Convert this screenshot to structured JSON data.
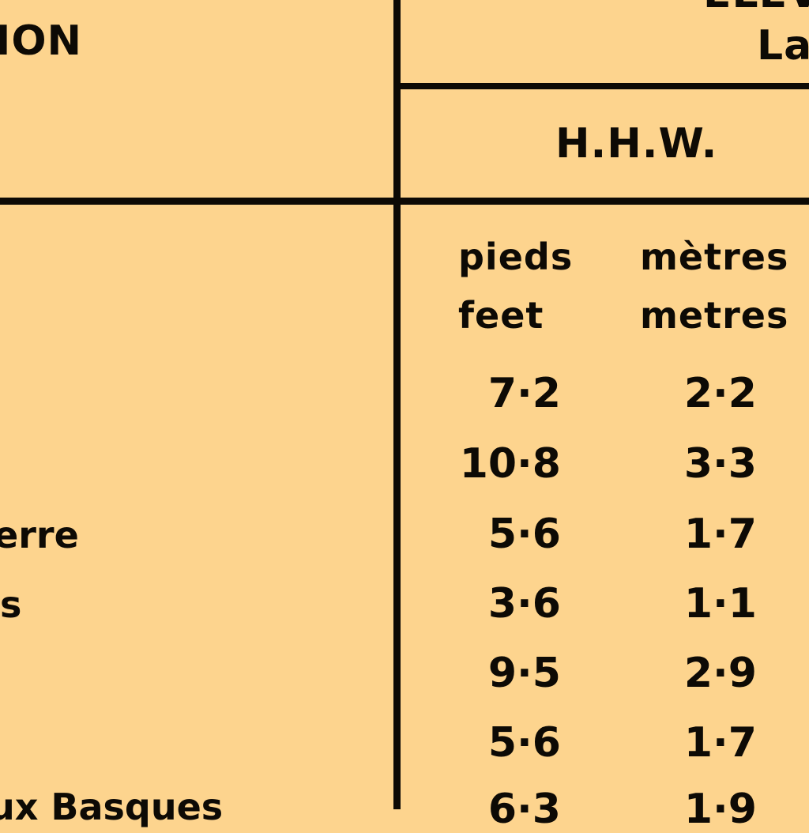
{
  "header": {
    "station_fragment": "ION",
    "elevation_fragment": "ELEV",
    "latitude_fragment": "La",
    "column_label": "H.H.W."
  },
  "units": {
    "feet_fr": "pieds",
    "feet_en": "feet",
    "metres_fr": "mètres",
    "metres_en": "metres"
  },
  "rows": [
    {
      "place": "",
      "feet": "7·2",
      "metres": "2·2"
    },
    {
      "place": "",
      "feet": "10·8",
      "metres": "3·3"
    },
    {
      "place": "erre",
      "feet": "5·6",
      "metres": "1·7"
    },
    {
      "place": "s",
      "feet": "3·6",
      "metres": "1·1"
    },
    {
      "place": "",
      "feet": "9·5",
      "metres": "2·9"
    },
    {
      "place": "",
      "feet": "5·6",
      "metres": "1·7"
    },
    {
      "place": "ux Basques",
      "feet": "6·3",
      "metres": "1·9"
    }
  ]
}
